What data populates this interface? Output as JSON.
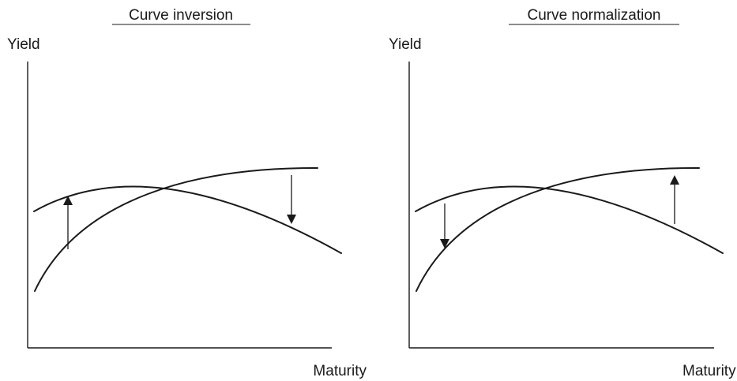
{
  "panels": [
    {
      "title": "Curve inversion",
      "y_axis_label": "Yield",
      "x_axis_label": "Maturity"
    },
    {
      "title": "Curve normalization",
      "y_axis_label": "Yield",
      "x_axis_label": "Maturity"
    }
  ]
}
